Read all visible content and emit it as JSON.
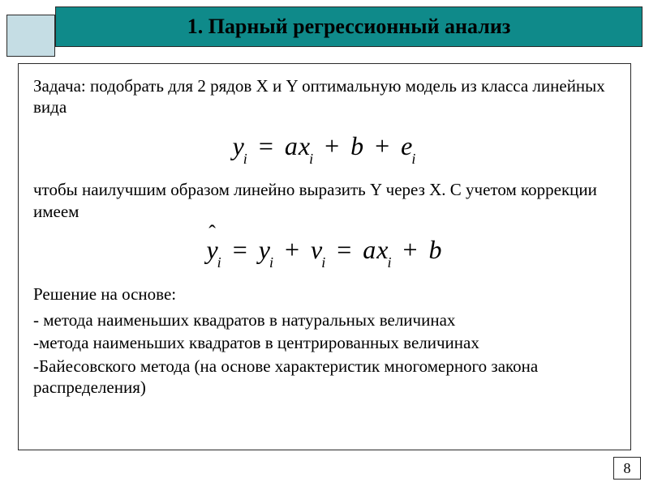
{
  "colors": {
    "title_bg": "#0f8a8a",
    "corner_bg": "#c5dde4",
    "border": "#2a2a2a",
    "text": "#000000",
    "page_bg": "#ffffff"
  },
  "typography": {
    "title_fontsize": 26,
    "body_fontsize": 21,
    "formula_fontsize": 32,
    "font_family": "Times New Roman"
  },
  "title": "1. Парный регрессионный анализ",
  "body": {
    "para1": "Задача: подобрать для 2 рядов X  и Y оптимальную модель из класса линейных вида",
    "para2": "чтобы наилучшим образом линейно выразить Y через X. С учетом коррекции имеем",
    "para3": "Решение на основе:",
    "bullets": [
      "- метода наименьших квадратов в натуральных величинах",
      "-метода наименьших квадратов в центрированных величинах",
      "-Байесовского метода (на основе характеристик многомерного закона распределения)"
    ]
  },
  "formulas": {
    "eq1": {
      "y": "y",
      "y_sub": "i",
      "eq": "=",
      "a": "a",
      "x": "x",
      "x_sub": "i",
      "plus1": "+",
      "b": "b",
      "plus2": "+",
      "e": "e",
      "e_sub": "i"
    },
    "eq2": {
      "yhat": "y",
      "yhat_sub": "i",
      "eq1": "=",
      "y": "y",
      "y_sub": "i",
      "plus1": "+",
      "v": "v",
      "v_sub": "i",
      "eq2": "=",
      "a": "a",
      "x": "x",
      "x_sub": "i",
      "plus2": "+",
      "b": "b"
    }
  },
  "page_number": "8"
}
